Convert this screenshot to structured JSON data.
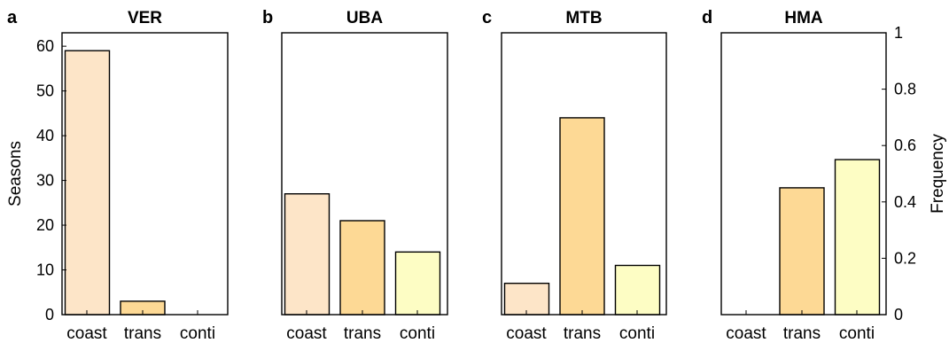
{
  "colors": {
    "coast": "#fde5c8",
    "trans": "#fdd995",
    "conti": "#fdfdc4",
    "stroke": "#000000"
  },
  "left_axis": {
    "label": "Seasons",
    "ylim": [
      0,
      63
    ],
    "ticks": [
      0,
      10,
      20,
      30,
      40,
      50,
      60
    ]
  },
  "right_axis": {
    "label": "Frequency",
    "ylim": [
      0,
      1
    ],
    "ticks": [
      0,
      0.2,
      0.4,
      0.6,
      0.8,
      1
    ],
    "tick_labels": [
      "0",
      "0.2",
      "0.4",
      "0.6",
      "0.8",
      "1"
    ]
  },
  "chart_data": [
    {
      "type": "bar",
      "panel": "a",
      "title": "VER",
      "categories": [
        "coast",
        "trans",
        "conti"
      ],
      "values": [
        59,
        3,
        0
      ],
      "ylabel": "Seasons",
      "ylim": [
        0,
        63
      ]
    },
    {
      "type": "bar",
      "panel": "b",
      "title": "UBA",
      "categories": [
        "coast",
        "trans",
        "conti"
      ],
      "values": [
        27,
        21,
        14
      ],
      "ylim": [
        0,
        63
      ]
    },
    {
      "type": "bar",
      "panel": "c",
      "title": "MTB",
      "categories": [
        "coast",
        "trans",
        "conti"
      ],
      "values": [
        7,
        44,
        11
      ],
      "ylim": [
        0,
        63
      ]
    },
    {
      "type": "bar",
      "panel": "d",
      "title": "HMA",
      "categories": [
        "coast",
        "trans",
        "conti"
      ],
      "values": [
        0,
        0.45,
        0.55
      ],
      "ylabel": "Frequency",
      "ylim": [
        0,
        1
      ]
    }
  ]
}
